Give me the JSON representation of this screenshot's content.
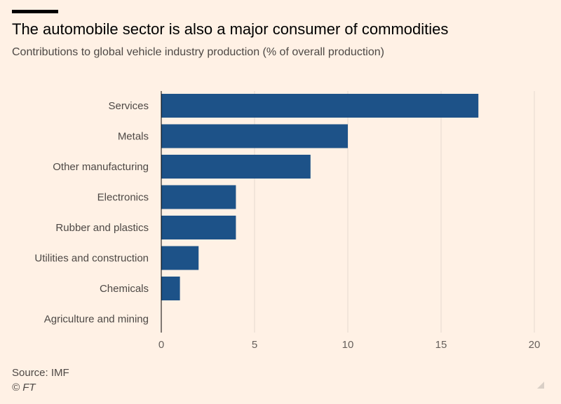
{
  "header": {
    "title": "The automobile sector is also a major consumer of commodities",
    "subtitle": "Contributions to global vehicle industry production (% of overall production)"
  },
  "footer": {
    "source": "Source: IMF",
    "copyright": "© FT"
  },
  "chart_data": {
    "type": "bar",
    "orientation": "horizontal",
    "categories": [
      "Services",
      "Metals",
      "Other manufacturing",
      "Electronics",
      "Rubber and plastics",
      "Utilities and construction",
      "Chemicals",
      "Agriculture and mining"
    ],
    "values": [
      17,
      10,
      8,
      4,
      4,
      2,
      1,
      0
    ],
    "xlim": [
      0,
      20
    ],
    "xticks": [
      0,
      5,
      10,
      15,
      20
    ],
    "grid": true,
    "bar_color": "#1d5288"
  }
}
